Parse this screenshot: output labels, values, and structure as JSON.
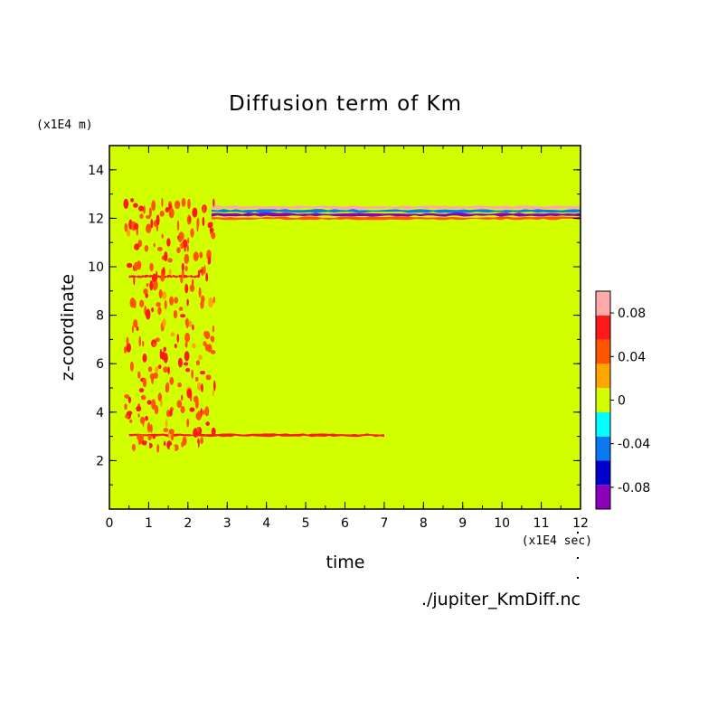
{
  "chart_data": {
    "type": "heatmap",
    "title": "Diffusion term of Km",
    "xlabel": "time",
    "ylabel": "z-coordinate",
    "x_unit": "(x1E4 sec)",
    "y_unit": "(x1E4 m)",
    "source_file": "./jupiter_KmDiff.nc",
    "xlim": [
      0,
      12
    ],
    "ylim": [
      0,
      15
    ],
    "x_ticks": [
      "0",
      "1",
      "2",
      "3",
      "4",
      "5",
      "6",
      "7",
      "8",
      "9",
      "10",
      "11",
      "12"
    ],
    "y_ticks": [
      "2",
      "4",
      "6",
      "8",
      "10",
      "12",
      "14"
    ],
    "colorbar": {
      "levels": [
        -0.1,
        -0.08,
        -0.06,
        -0.04,
        -0.02,
        0,
        0.02,
        0.04,
        0.06,
        0.08,
        0.1
      ],
      "labels": [
        "-0.08",
        "-0.04",
        "0",
        "0.04",
        "0.08"
      ],
      "colors": [
        "#8b00b8",
        "#0000cd",
        "#0a78f0",
        "#00ffff",
        "#d2ff00",
        "#ffa500",
        "#ff5500",
        "#ff1a1a",
        "#ffaaaa"
      ],
      "background": "#d2ff00"
    },
    "features": [
      {
        "kind": "band",
        "z": 12.45,
        "x_range": [
          2.6,
          12
        ],
        "value": 0.06
      },
      {
        "kind": "band",
        "z": 12.3,
        "x_range": [
          2.6,
          12
        ],
        "value": -0.06
      },
      {
        "kind": "band",
        "z": 12.15,
        "x_range": [
          2.6,
          12
        ],
        "value": -0.09
      },
      {
        "kind": "band",
        "z": 12.0,
        "x_range": [
          2.6,
          12
        ],
        "value": 0.03
      },
      {
        "kind": "band",
        "z": 3.05,
        "x_range": [
          0.5,
          7.0
        ],
        "value": 0.05
      },
      {
        "kind": "band",
        "z": 9.6,
        "x_range": [
          0.5,
          2.3
        ],
        "value": 0.05
      },
      {
        "kind": "band",
        "z": 8.45,
        "x_range": [
          4.5,
          12
        ],
        "value": -0.01
      },
      {
        "kind": "band",
        "z": 2.3,
        "x_range": [
          8.0,
          12
        ],
        "value": -0.01
      },
      {
        "kind": "noise",
        "x_range": [
          0.4,
          2.7
        ],
        "z_range": [
          2.5,
          12.8
        ],
        "value": 0.03
      },
      {
        "kind": "noise",
        "x_range": [
          0.1,
          7.5
        ],
        "z_range": [
          0.2,
          2.7
        ],
        "value": -0.01
      }
    ]
  }
}
